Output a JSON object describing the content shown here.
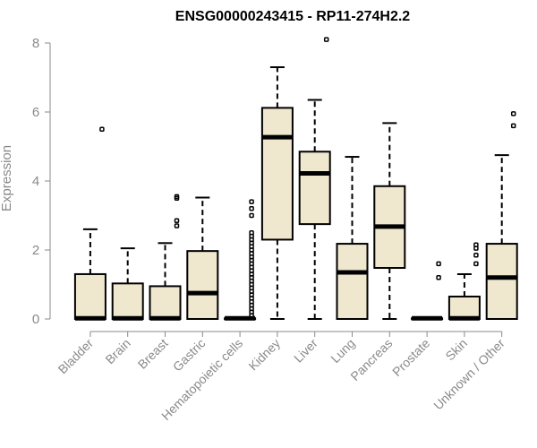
{
  "chart_data": {
    "type": "box",
    "title": "ENSG00000243415 - RP11-274H2.2",
    "xlabel": "",
    "ylabel": "Expression",
    "ylim": [
      0,
      8.2
    ],
    "yticks": [
      0,
      2,
      4,
      6,
      8
    ],
    "grid": false,
    "legend": "none",
    "categories": [
      "Bladder",
      "Brain",
      "Breast",
      "Gastric",
      "Hematopoietic cells",
      "Kidney",
      "Liver",
      "Lung",
      "Pancreas",
      "Prostate",
      "Skin",
      "Unknown / Other"
    ],
    "box_fill": "#efe8cf",
    "box_stroke": "#000000",
    "boxes": [
      {
        "category": "Bladder",
        "whisker_low": 0,
        "q1": 0,
        "median": 0.02,
        "q3": 1.3,
        "whisker_high": 2.6,
        "outliers": [
          5.5
        ]
      },
      {
        "category": "Brain",
        "whisker_low": 0,
        "q1": 0,
        "median": 0.02,
        "q3": 1.03,
        "whisker_high": 2.05,
        "outliers": []
      },
      {
        "category": "Breast",
        "whisker_low": 0,
        "q1": 0,
        "median": 0.02,
        "q3": 0.95,
        "whisker_high": 2.2,
        "outliers": [
          2.7,
          2.85,
          3.5,
          3.55
        ]
      },
      {
        "category": "Gastric",
        "whisker_low": 0,
        "q1": 0,
        "median": 0.75,
        "q3": 1.97,
        "whisker_high": 3.52,
        "outliers": []
      },
      {
        "category": "Hematopoietic cells",
        "whisker_low": 0,
        "q1": 0,
        "median": 0.02,
        "q3": 0.02,
        "whisker_high": 0.02,
        "outliers": [
          0.1,
          0.2,
          0.3,
          0.4,
          0.5,
          0.6,
          0.7,
          0.8,
          0.9,
          1.0,
          1.1,
          1.2,
          1.3,
          1.4,
          1.5,
          1.6,
          1.7,
          1.8,
          1.9,
          2.0,
          2.1,
          2.2,
          2.3,
          2.4,
          2.5,
          3.0,
          3.2,
          3.4
        ]
      },
      {
        "category": "Kidney",
        "whisker_low": 0,
        "q1": 2.3,
        "median": 5.27,
        "q3": 6.12,
        "whisker_high": 7.3,
        "outliers": []
      },
      {
        "category": "Liver",
        "whisker_low": 0,
        "q1": 2.75,
        "median": 4.22,
        "q3": 4.85,
        "whisker_high": 6.35,
        "outliers": [
          8.1
        ]
      },
      {
        "category": "Lung",
        "whisker_low": 0,
        "q1": 0,
        "median": 1.35,
        "q3": 2.18,
        "whisker_high": 4.7,
        "outliers": []
      },
      {
        "category": "Pancreas",
        "whisker_low": 0,
        "q1": 1.48,
        "median": 2.68,
        "q3": 3.85,
        "whisker_high": 5.68,
        "outliers": []
      },
      {
        "category": "Prostate",
        "whisker_low": 0,
        "q1": 0,
        "median": 0.02,
        "q3": 0.02,
        "whisker_high": 0.02,
        "outliers": [
          1.2,
          1.6
        ]
      },
      {
        "category": "Skin",
        "whisker_low": 0,
        "q1": 0,
        "median": 0.02,
        "q3": 0.65,
        "whisker_high": 1.3,
        "outliers": [
          1.6,
          1.85,
          2.05,
          2.15
        ]
      },
      {
        "category": "Unknown / Other",
        "whisker_low": 0,
        "q1": 0,
        "median": 1.2,
        "q3": 2.18,
        "whisker_high": 4.75,
        "outliers": [
          5.6,
          5.95
        ]
      }
    ]
  }
}
